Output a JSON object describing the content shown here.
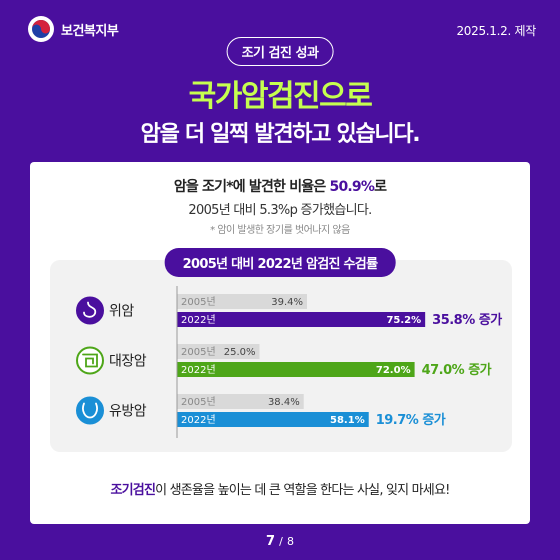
{
  "header": {
    "org_name": "보건복지부",
    "date": "2025.1.2. 제작",
    "tag": "조기 검진 성과",
    "title_line1": "국가암검진으로",
    "title_line2": "암을 더 일찍 발견하고 있습니다."
  },
  "summary": {
    "line1_prefix": "암을 조기*에 발견한 비율은 ",
    "line1_value": "50.9%",
    "line1_suffix": "로",
    "line2": "2005년 대비 5.3%p 증가했습니다.",
    "note": "* 암이 발생한 장기를 벗어나지 않음"
  },
  "chart_data": {
    "type": "bar",
    "title": "2005년 대비 2022년 암검진 수검률",
    "categories": [
      "위암",
      "대장암",
      "유방암"
    ],
    "series": [
      {
        "name": "2005년",
        "values": [
          39.4,
          25.0,
          38.4
        ]
      },
      {
        "name": "2022년",
        "values": [
          75.2,
          72.0,
          58.1
        ]
      }
    ],
    "value_labels_2005": [
      "39.4%",
      "25.0%",
      "38.4%"
    ],
    "value_labels_2022": [
      "75.2%",
      "72.0%",
      "58.1%"
    ],
    "increase_labels": [
      "35.8% 증가",
      "47.0% 증가",
      "19.7% 증가"
    ],
    "category_colors": [
      "#4a0f9e",
      "#4ea619",
      "#1a8fd6"
    ],
    "bar_2005_color": "#d9d9d9",
    "xlim": [
      0,
      100
    ],
    "orientation": "horizontal"
  },
  "icons": [
    "stomach-icon",
    "intestine-icon",
    "breast-icon"
  ],
  "footer": {
    "highlight": "조기검진",
    "rest": "이 생존율을 높이는 데 큰 역할을 한다는 사실, 잊지 마세요!"
  },
  "pager": {
    "current": "7",
    "separator": "/",
    "total": "8"
  }
}
